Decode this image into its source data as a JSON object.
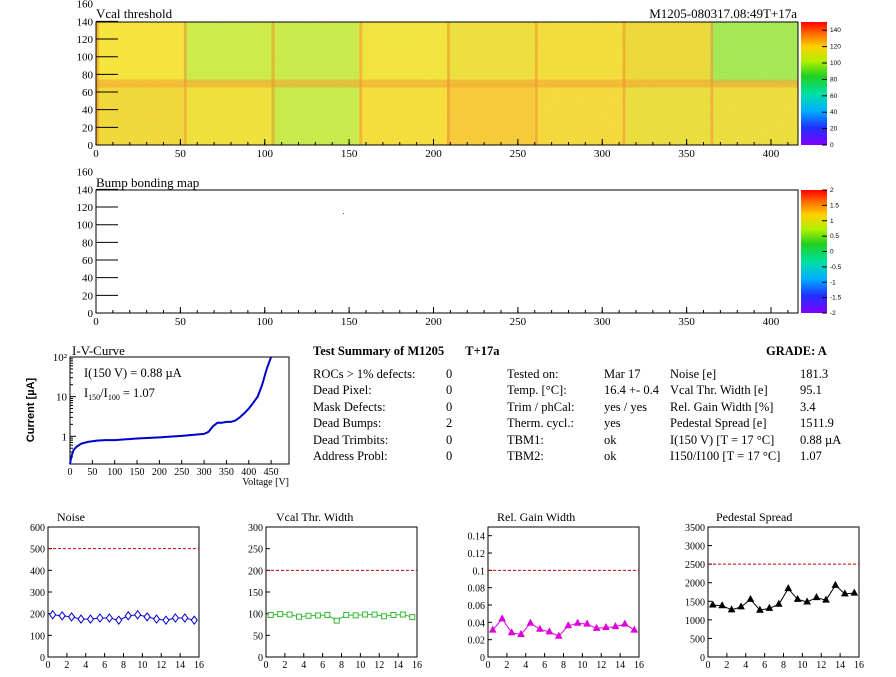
{
  "module_id": "M1205-080317.08:49T+17a",
  "vcal_map": {
    "title": "Vcal threshold",
    "x_ticks": [
      "0",
      "50",
      "100",
      "150",
      "200",
      "250",
      "300",
      "350",
      "400"
    ],
    "y_ticks": [
      "0",
      "20",
      "40",
      "60",
      "80",
      "100",
      "120",
      "140",
      "160"
    ],
    "colorbar_ticks": [
      "0",
      "20",
      "40",
      "60",
      "80",
      "100",
      "120",
      "140"
    ],
    "range": [
      0,
      150
    ]
  },
  "bump_map": {
    "title": "Bump bonding map",
    "x_ticks": [
      "0",
      "50",
      "100",
      "150",
      "200",
      "250",
      "300",
      "350",
      "400"
    ],
    "y_ticks": [
      "0",
      "20",
      "40",
      "60",
      "80",
      "100",
      "120",
      "140",
      "160"
    ],
    "colorbar_ticks": [
      "-2",
      "-1.5",
      "-1",
      "-0.5",
      "0",
      "0.5",
      "1",
      "1.5",
      "2"
    ]
  },
  "iv_curve": {
    "title": "I-V-Curve",
    "ylabel": "Current [µA]",
    "xlabel": "Voltage [V]",
    "x_ticks": [
      "0",
      "50",
      "100",
      "150",
      "200",
      "250",
      "300",
      "350",
      "400",
      "450"
    ],
    "y_ticks": [
      "1",
      "10",
      "10²"
    ],
    "annotation_i": "I(150 V) = 0.88 µA",
    "annotation_ratio_prefix": "I",
    "annotation_ratio_sub1": "150",
    "annotation_ratio_mid": "/I",
    "annotation_ratio_sub2": "100",
    "annotation_ratio_value": "=  1.07"
  },
  "summary": {
    "title": "Test Summary of M1205",
    "tag": "T+17a",
    "grade_label": "GRADE:  A",
    "col1_labels": [
      "ROCs > 1% defects:",
      "Dead Pixel:",
      "Mask Defects:",
      "Dead Bumps:",
      "Dead Trimbits:",
      "Address Probl:"
    ],
    "col1_values": [
      "0",
      "0",
      "0",
      "2",
      "0",
      "0"
    ],
    "col2_labels": [
      "Tested on:",
      "Temp. [°C]:",
      "Trim / phCal:",
      "Therm. cycl.:",
      "TBM1:",
      "TBM2:"
    ],
    "col2_values": [
      "Mar 17",
      "16.4 +- 0.4",
      "yes / yes",
      "yes",
      "ok",
      "ok"
    ],
    "col3_labels": [
      "Noise [e]",
      "Vcal Thr. Width [e]",
      "Rel. Gain Width [%]",
      "Pedestal Spread [e]",
      "I(150 V) [T = 17 °C]",
      "I150/I100  [T = 17 °C]"
    ],
    "col3_values": [
      "181.3",
      "95.1",
      "3.4",
      "1511.9",
      "0.88 µA",
      "1.07"
    ]
  },
  "chart_data": [
    {
      "type": "line",
      "title": "I-V-Curve",
      "xlabel": "Voltage [V]",
      "ylabel": "Current [µA]",
      "yscale": "log",
      "xlim": [
        0,
        490
      ],
      "ylim": [
        0.2,
        100
      ],
      "x": [
        0,
        3,
        8,
        15,
        25,
        40,
        60,
        80,
        100,
        150,
        200,
        250,
        300,
        310,
        320,
        330,
        340,
        350,
        360,
        370,
        380,
        390,
        400,
        410,
        420,
        430,
        440,
        450
      ],
      "y": [
        0.2,
        0.3,
        0.45,
        0.55,
        0.65,
        0.72,
        0.78,
        0.8,
        0.8,
        0.88,
        0.94,
        1.02,
        1.15,
        1.3,
        1.8,
        2.2,
        2.2,
        2.3,
        2.3,
        2.5,
        3.0,
        3.8,
        5.0,
        7.0,
        10,
        20,
        50,
        100
      ]
    },
    {
      "type": "scatter",
      "title": "Noise",
      "xlim": [
        0,
        16
      ],
      "ylim": [
        0,
        600
      ],
      "x_ticks": [
        "0",
        "2",
        "4",
        "6",
        "8",
        "10",
        "12",
        "14",
        "16"
      ],
      "y_ticks": [
        "0",
        "100",
        "200",
        "300",
        "400",
        "500",
        "600"
      ],
      "limit": 500,
      "color": "#0000cc",
      "marker": "diamond",
      "x": [
        0.5,
        1.5,
        2.5,
        3.5,
        4.5,
        5.5,
        6.5,
        7.5,
        8.5,
        9.5,
        10.5,
        11.5,
        12.5,
        13.5,
        14.5,
        15.5
      ],
      "y": [
        195,
        190,
        185,
        175,
        175,
        180,
        180,
        170,
        190,
        195,
        185,
        175,
        170,
        180,
        180,
        170
      ]
    },
    {
      "type": "scatter",
      "title": "Vcal Thr. Width",
      "xlim": [
        0,
        16
      ],
      "ylim": [
        0,
        300
      ],
      "x_ticks": [
        "0",
        "2",
        "4",
        "6",
        "8",
        "10",
        "12",
        "14",
        "16"
      ],
      "y_ticks": [
        "0",
        "50",
        "100",
        "150",
        "200",
        "250",
        "300"
      ],
      "limit": 200,
      "color": "#33bb33",
      "marker": "square",
      "x": [
        0.5,
        1.5,
        2.5,
        3.5,
        4.5,
        5.5,
        6.5,
        7.5,
        8.5,
        9.5,
        10.5,
        11.5,
        12.5,
        13.5,
        14.5,
        15.5
      ],
      "y": [
        97,
        99,
        98,
        93,
        95,
        96,
        97,
        84,
        97,
        96,
        98,
        98,
        94,
        97,
        98,
        92
      ]
    },
    {
      "type": "scatter",
      "title": "Rel. Gain Width",
      "xlim": [
        0,
        16
      ],
      "ylim": [
        0,
        0.15
      ],
      "x_ticks": [
        "0",
        "2",
        "4",
        "6",
        "8",
        "10",
        "12",
        "14",
        "16"
      ],
      "y_ticks": [
        "0",
        "0.02",
        "0.04",
        "0.06",
        "0.08",
        "0.1",
        "0.12",
        "0.14"
      ],
      "limit": 0.1,
      "color": "#dd00dd",
      "marker": "triangle",
      "x": [
        0.5,
        1.5,
        2.5,
        3.5,
        4.5,
        5.5,
        6.5,
        7.5,
        8.5,
        9.5,
        10.5,
        11.5,
        12.5,
        13.5,
        14.5,
        15.5
      ],
      "y": [
        0.031,
        0.044,
        0.028,
        0.026,
        0.039,
        0.032,
        0.029,
        0.024,
        0.036,
        0.039,
        0.038,
        0.033,
        0.034,
        0.035,
        0.038,
        0.031
      ]
    },
    {
      "type": "scatter",
      "title": "Pedestal Spread",
      "xlim": [
        0,
        16
      ],
      "ylim": [
        0,
        3500
      ],
      "x_ticks": [
        "0",
        "2",
        "4",
        "6",
        "8",
        "10",
        "12",
        "14",
        "16"
      ],
      "y_ticks": [
        "0",
        "500",
        "1000",
        "1500",
        "2000",
        "2500",
        "3000",
        "3500"
      ],
      "limit": 2500,
      "color": "#000000",
      "marker": "triangle",
      "x": [
        0.5,
        1.5,
        2.5,
        3.5,
        4.5,
        5.5,
        6.5,
        7.5,
        8.5,
        9.5,
        10.5,
        11.5,
        12.5,
        13.5,
        14.5,
        15.5
      ],
      "y": [
        1400,
        1380,
        1270,
        1350,
        1550,
        1260,
        1310,
        1420,
        1840,
        1550,
        1480,
        1600,
        1530,
        1930,
        1700,
        1720
      ]
    }
  ]
}
